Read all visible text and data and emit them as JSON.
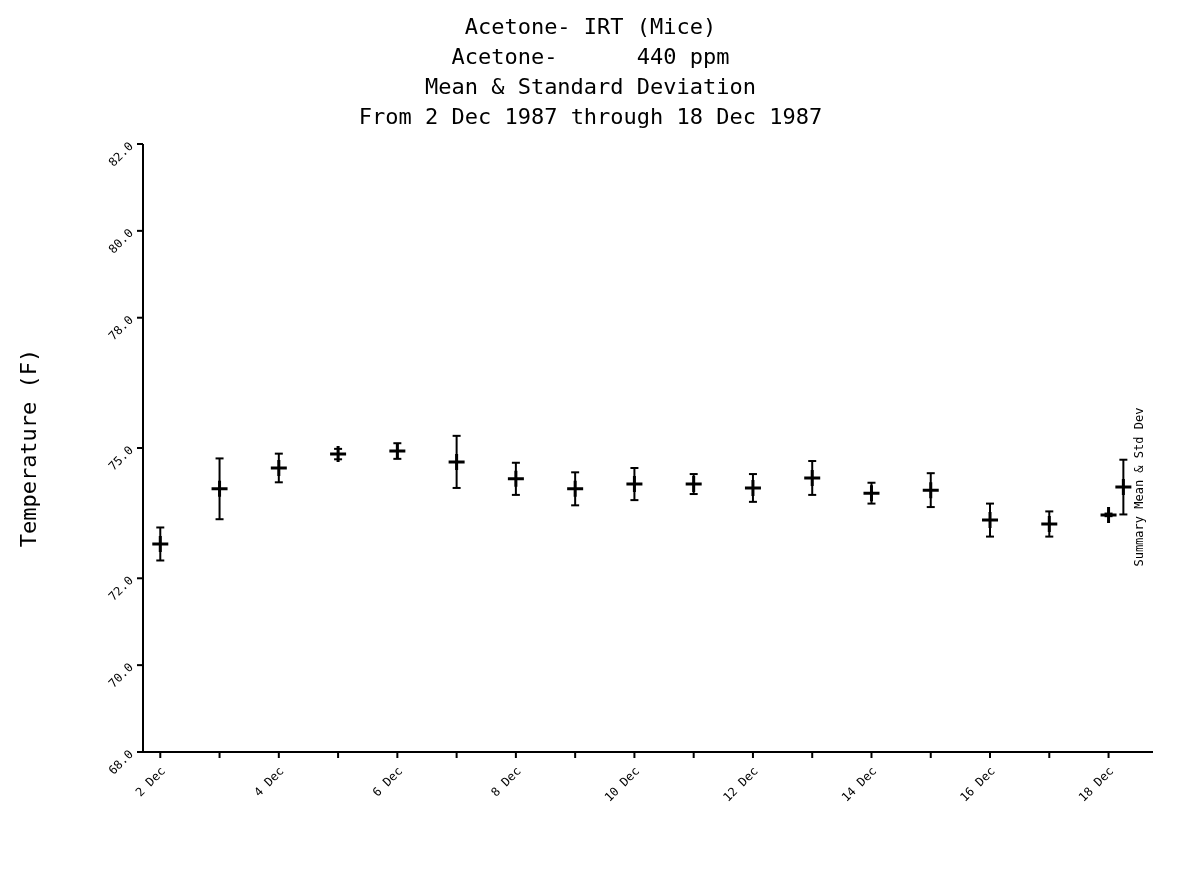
{
  "chart_data": {
    "type": "scatter",
    "title": "Acetone- IRT (Mice)",
    "subtitle": "Acetone-      440 ppm\nMean & Standard Deviation\nFrom 2 Dec 1987 through 18 Dec 1987",
    "ylabel": "Temperature (F)",
    "marker": "cross",
    "xlim": [
      "1987-12-01T17:00",
      "1987-12-18T18:00"
    ],
    "xticks": [
      {
        "value": "1987-12-02",
        "label": "2 Dec"
      },
      {
        "value": "1987-12-03",
        "label": null
      },
      {
        "value": "1987-12-04",
        "label": "4 Dec"
      },
      {
        "value": "1987-12-05",
        "label": null
      },
      {
        "value": "1987-12-06",
        "label": "6 Dec"
      },
      {
        "value": "1987-12-07",
        "label": null
      },
      {
        "value": "1987-12-08",
        "label": "8 Dec"
      },
      {
        "value": "1987-12-09",
        "label": null
      },
      {
        "value": "1987-12-10",
        "label": "10 Dec"
      },
      {
        "value": "1987-12-11",
        "label": null
      },
      {
        "value": "1987-12-12",
        "label": "12 Dec"
      },
      {
        "value": "1987-12-13",
        "label": null
      },
      {
        "value": "1987-12-14",
        "label": "14 Dec"
      },
      {
        "value": "1987-12-15",
        "label": null
      },
      {
        "value": "1987-12-16",
        "label": "16 Dec"
      },
      {
        "value": "1987-12-17",
        "label": null
      },
      {
        "value": "1987-12-18",
        "label": "18 Dec"
      }
    ],
    "ylim": [
      68,
      82
    ],
    "yticks": [
      {
        "value": 68,
        "label": "68.0"
      },
      {
        "value": 70,
        "label": "70.0"
      },
      {
        "value": 72,
        "label": "72.0"
      },
      {
        "value": 75,
        "label": "75.0"
      },
      {
        "value": 78,
        "label": "78.0"
      },
      {
        "value": 80,
        "label": "80.0"
      },
      {
        "value": 82,
        "label": "82.0"
      }
    ],
    "series": [
      {
        "color": "#000000",
        "x": [
          "1987-12-02",
          "1987-12-03",
          "1987-12-04",
          "1987-12-05",
          "1987-12-06",
          "1987-12-07",
          "1987-12-08",
          "1987-12-09",
          "1987-12-10",
          "1987-12-11",
          "1987-12-12",
          "1987-12-13",
          "1987-12-14",
          "1987-12-15",
          "1987-12-16",
          "1987-12-17",
          "1987-12-18"
        ],
        "values": [
          72.79,
          74.06,
          74.54,
          74.86,
          74.93,
          74.68,
          74.29,
          74.06,
          74.17,
          74.17,
          74.08,
          74.31,
          73.96,
          74.03,
          73.34,
          73.25,
          73.46
        ],
        "errors": [
          0.38,
          0.7,
          0.33,
          0.12,
          0.18,
          0.6,
          0.37,
          0.38,
          0.37,
          0.23,
          0.32,
          0.39,
          0.24,
          0.39,
          0.38,
          0.29,
          0.03
        ]
      },
      {
        "name": "Summary Mean & Std Dev",
        "color": "#000000",
        "x": [
          "1987-12-18T06:00"
        ],
        "values": [
          74.1
        ],
        "errors": [
          0.63
        ]
      }
    ]
  }
}
